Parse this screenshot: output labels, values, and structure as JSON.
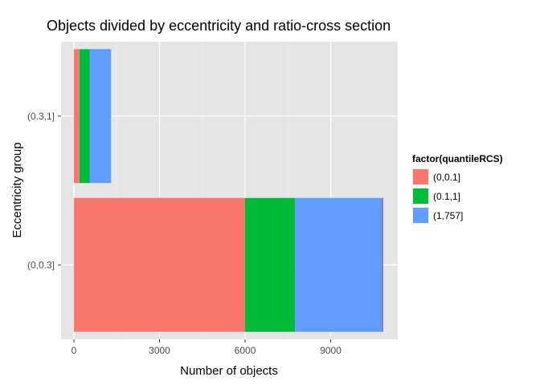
{
  "chart_data": {
    "type": "bar",
    "orientation": "horizontal",
    "stacked": true,
    "title": "Objects divided by eccentricity and ratio-cross section",
    "xlabel": "Number of objects",
    "ylabel": "Eccentricity group",
    "categories": [
      "(0,0.3]",
      "(0.3,1]"
    ],
    "xlim": [
      -450,
      11350
    ],
    "xticks": [
      0,
      3000,
      6000,
      9000
    ],
    "xtick_labels": [
      "0",
      "3000",
      "6000",
      "9000"
    ],
    "grid": true,
    "legend": {
      "title": "factor(quantileRCS)",
      "position": "right"
    },
    "series": [
      {
        "name": "(0,0.1]",
        "color": "#F8766D",
        "values": [
          6000,
          200
        ]
      },
      {
        "name": "(0.1,1]",
        "color": "#00BA38",
        "values": [
          1750,
          350
        ]
      },
      {
        "name": "(1,757]",
        "color": "#619CFF",
        "values": [
          3050,
          750
        ]
      }
    ],
    "extra_sliver": {
      "color": "#7f6f99",
      "values": [
        40,
        0
      ]
    }
  }
}
